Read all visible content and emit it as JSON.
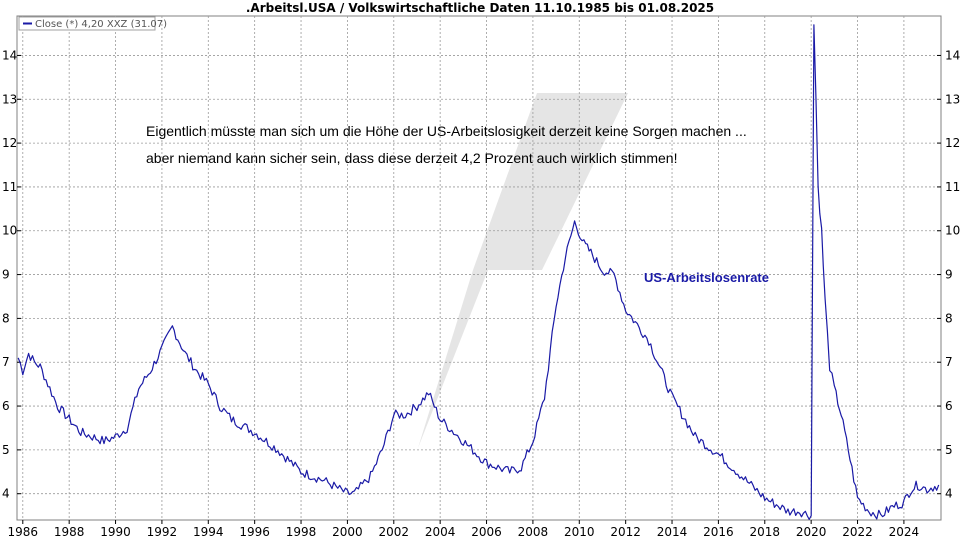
{
  "chart_data": {
    "type": "line",
    "title": ".Arbeitsl.USA / Volkswirtschaftliche Daten 11.10.1985 bis 01.08.2025",
    "legend": "Close (*) 4,20 XXZ (31.07)",
    "legend_placement": "top-left",
    "series_label": "US-Arbeitslosenrate",
    "annotations": [
      "Eigentlich müsste man sich um die Höhe der US-Arbeitslosigkeit derzeit keine Sorgen machen ...",
      "aber niemand kann sicher sein, dass diese derzeit 4,2 Prozent auch wirklich stimmen!"
    ],
    "x_ticks": [
      "1986",
      "1988",
      "1990",
      "1992",
      "1994",
      "1996",
      "1998",
      "2000",
      "2002",
      "2004",
      "2006",
      "2008",
      "2010",
      "2012",
      "2014",
      "2016",
      "2018",
      "2020",
      "2022",
      "2024"
    ],
    "y_ticks": [
      "4",
      "5",
      "6",
      "7",
      "8",
      "9",
      "10",
      "11",
      "12",
      "13",
      "14"
    ],
    "xlim": [
      1985.75,
      2025.6
    ],
    "ylim": [
      3.4,
      14.9
    ],
    "grid": true,
    "line_color": "#1a1aa6",
    "series": [
      {
        "x": [
          1985.8,
          1986.0,
          1986.25,
          1986.5,
          1986.75,
          1987.0,
          1987.5,
          1988.0,
          1988.5,
          1989.0,
          1989.5,
          1990.0,
          1990.5,
          1991.0,
          1991.5,
          1992.0,
          1992.45,
          1993.0,
          1993.5,
          1994.0,
          1994.5,
          1995.0,
          1996.0,
          1997.0,
          1998.0,
          1999.0,
          2000.0,
          2000.3,
          2001.0,
          2001.5,
          2002.0,
          2002.5,
          2003.0,
          2003.5,
          2004.0,
          2005.0,
          2006.0,
          2007.0,
          2007.5,
          2008.0,
          2008.5,
          2009.0,
          2009.4,
          2009.8,
          2010.2,
          2010.5,
          2011.0,
          2011.5,
          2012.0,
          2013.0,
          2014.0,
          2015.0,
          2016.0,
          2017.0,
          2018.0,
          2019.0,
          2019.5,
          2020.0,
          2020.12,
          2020.21,
          2020.3,
          2020.45,
          2020.6,
          2020.8,
          2021.0,
          2021.3,
          2021.6,
          2022.0,
          2022.5,
          2023.0,
          2023.5,
          2024.0,
          2024.3,
          2024.6,
          2025.0,
          2025.5
        ],
        "y": [
          7.1,
          6.8,
          7.2,
          7.0,
          6.9,
          6.6,
          6.0,
          5.7,
          5.4,
          5.3,
          5.2,
          5.3,
          5.5,
          6.4,
          6.8,
          7.3,
          7.8,
          7.2,
          6.8,
          6.5,
          6.0,
          5.7,
          5.4,
          5.0,
          4.5,
          4.3,
          4.0,
          4.0,
          4.4,
          5.0,
          5.8,
          5.8,
          6.0,
          6.3,
          5.7,
          5.2,
          4.7,
          4.5,
          4.6,
          5.2,
          6.2,
          8.3,
          9.4,
          10.2,
          9.7,
          9.5,
          9.1,
          9.0,
          8.2,
          7.5,
          6.2,
          5.3,
          4.9,
          4.4,
          3.9,
          3.6,
          3.6,
          3.5,
          14.7,
          13.0,
          11.0,
          10.0,
          8.4,
          6.9,
          6.4,
          5.8,
          5.0,
          3.9,
          3.6,
          3.5,
          3.7,
          3.8,
          4.1,
          4.2,
          4.1,
          4.2
        ]
      }
    ]
  }
}
